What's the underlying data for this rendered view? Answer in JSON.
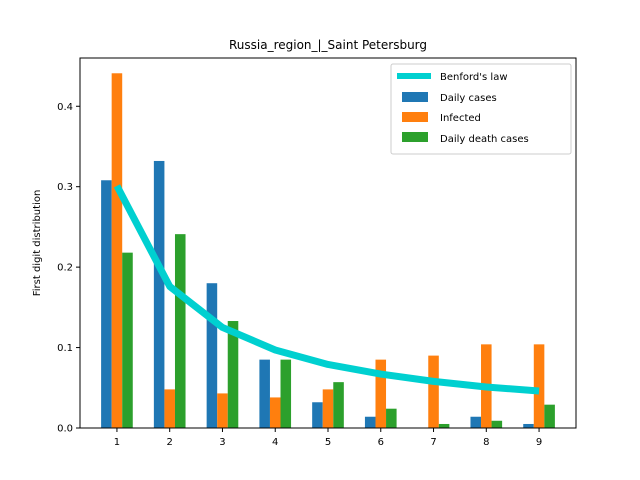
{
  "chart_data": {
    "type": "bar",
    "title": "Russia_region_|_Saint Petersburg",
    "xlabel": "",
    "ylabel": "First digit distribution",
    "categories": [
      "1",
      "2",
      "3",
      "4",
      "5",
      "6",
      "7",
      "8",
      "9"
    ],
    "xlim": [
      0.3,
      9.7
    ],
    "ylim": [
      0,
      0.46
    ],
    "yticks": [
      0.0,
      0.1,
      0.2,
      0.3,
      0.4
    ],
    "ytick_labels": [
      "0.0",
      "0.1",
      "0.2",
      "0.3",
      "0.4"
    ],
    "grid": false,
    "legend_position": "top-right",
    "series": [
      {
        "name": "Daily cases",
        "kind": "bar",
        "color": "#1f77b4",
        "values": [
          0.308,
          0.332,
          0.18,
          0.085,
          0.032,
          0.014,
          0.0,
          0.014,
          0.005
        ]
      },
      {
        "name": "Infected",
        "kind": "bar",
        "color": "#ff7f0e",
        "values": [
          0.441,
          0.048,
          0.043,
          0.038,
          0.048,
          0.085,
          0.09,
          0.104,
          0.104
        ]
      },
      {
        "name": "Daily death cases",
        "kind": "bar",
        "color": "#2ca02c",
        "values": [
          0.218,
          0.241,
          0.133,
          0.085,
          0.057,
          0.024,
          0.005,
          0.009,
          0.029
        ]
      }
    ],
    "benford": {
      "name": "Benford's law",
      "kind": "line",
      "color": "#00d0d0",
      "values": [
        0.301,
        0.176,
        0.125,
        0.097,
        0.079,
        0.067,
        0.058,
        0.051,
        0.046
      ]
    }
  }
}
